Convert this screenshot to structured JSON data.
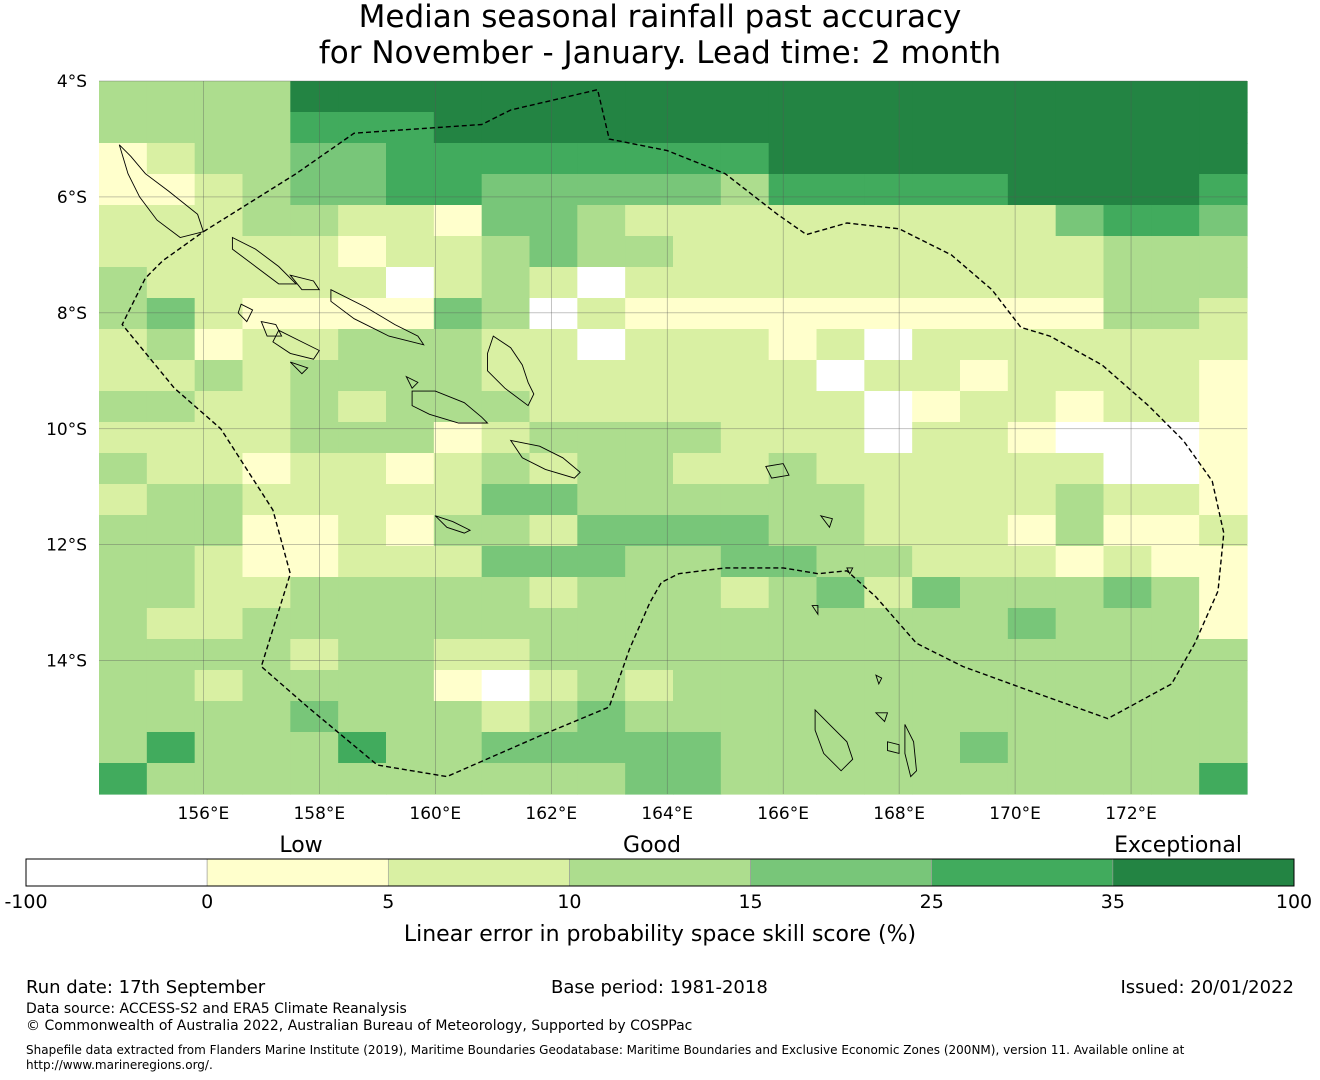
{
  "title": {
    "line1": "Median seasonal rainfall past accuracy",
    "line2": "for November - January. Lead time: 2 month"
  },
  "map": {
    "lat_range": [
      -16.3,
      -4.0
    ],
    "lon_range": [
      154.2,
      174.0
    ],
    "lat_ticks": [
      {
        "value": -4,
        "label": "4°S"
      },
      {
        "value": -6,
        "label": "6°S"
      },
      {
        "value": -8,
        "label": "8°S"
      },
      {
        "value": -10,
        "label": "10°S"
      },
      {
        "value": -12,
        "label": "12°S"
      },
      {
        "value": -14,
        "label": "14°S"
      }
    ],
    "lon_ticks": [
      {
        "value": 156,
        "label": "156°E"
      },
      {
        "value": 158,
        "label": "158°E"
      },
      {
        "value": 160,
        "label": "160°E"
      },
      {
        "value": 162,
        "label": "162°E"
      },
      {
        "value": 164,
        "label": "164°E"
      },
      {
        "value": 166,
        "label": "166°E"
      },
      {
        "value": 168,
        "label": "168°E"
      },
      {
        "value": 170,
        "label": "170°E"
      },
      {
        "value": 172,
        "label": "172°E"
      }
    ],
    "grid": {
      "cols": 24,
      "rows": 23,
      "row_codes": [
        "333366666666666666666666",
        "333355566666666666666666",
        "123344555555556666666666",
        "112344554444435555566665",
        "222332214432222222224554",
        "222221223433222222222333",
        "322222023202222222222333",
        "342111143021111111111332",
        "231223332202221202222222",
        "223233332222222022122221",
        "332232333222222201221221",
        "222233312333322202210001",
        "322122123233223222222001",
        "233222224433333322223221",
        "333112133244443322213112",
        "332112224443344332221211",
        "332233333233323424333431",
        "322333333333333333343331",
        "333323322333333333333333",
        "332333310232333333333333",
        "333343332343333333333333",
        "353335334444433333433333",
        "533333333334433333333335"
      ]
    },
    "categories": [
      {
        "code": 0,
        "color": "#ffffff"
      },
      {
        "code": 1,
        "color": "#ffffcc"
      },
      {
        "code": 2,
        "color": "#d9f0a3"
      },
      {
        "code": 3,
        "color": "#addd8e"
      },
      {
        "code": 4,
        "color": "#78c679"
      },
      {
        "code": 5,
        "color": "#41ab5d"
      },
      {
        "code": 6,
        "color": "#238443"
      }
    ],
    "eez_boundary": [
      [
        156.0,
        -6.6
      ],
      [
        157.6,
        -5.6
      ],
      [
        158.6,
        -4.9
      ],
      [
        160.8,
        -4.75
      ],
      [
        161.3,
        -4.5
      ],
      [
        162.8,
        -4.15
      ],
      [
        163.0,
        -5.0
      ],
      [
        164.0,
        -5.2
      ],
      [
        165.0,
        -5.6
      ],
      [
        165.9,
        -6.3
      ],
      [
        166.4,
        -6.65
      ],
      [
        167.1,
        -6.45
      ],
      [
        168.0,
        -6.55
      ],
      [
        168.9,
        -7.0
      ],
      [
        169.6,
        -7.6
      ],
      [
        170.1,
        -8.25
      ],
      [
        170.6,
        -8.4
      ],
      [
        171.5,
        -8.9
      ],
      [
        172.3,
        -9.6
      ],
      [
        172.9,
        -10.2
      ],
      [
        173.4,
        -10.9
      ],
      [
        173.6,
        -11.8
      ],
      [
        173.5,
        -12.8
      ],
      [
        173.1,
        -13.7
      ],
      [
        172.7,
        -14.4
      ],
      [
        171.6,
        -15.0
      ],
      [
        170.2,
        -14.5
      ],
      [
        169.1,
        -14.1
      ],
      [
        168.3,
        -13.7
      ],
      [
        167.6,
        -12.9
      ],
      [
        167.1,
        -12.45
      ],
      [
        166.6,
        -12.5
      ],
      [
        166.0,
        -12.4
      ],
      [
        165.0,
        -12.4
      ],
      [
        164.2,
        -12.5
      ],
      [
        163.9,
        -12.65
      ],
      [
        163.7,
        -13.0
      ],
      [
        163.35,
        -13.8
      ],
      [
        163.0,
        -14.8
      ],
      [
        161.8,
        -15.3
      ],
      [
        160.2,
        -16.0
      ],
      [
        159.0,
        -15.8
      ],
      [
        157.8,
        -14.8
      ],
      [
        157.0,
        -14.1
      ],
      [
        157.5,
        -12.5
      ],
      [
        157.2,
        -11.4
      ],
      [
        156.3,
        -10.0
      ],
      [
        155.5,
        -9.3
      ],
      [
        154.6,
        -8.2
      ],
      [
        155.0,
        -7.4
      ],
      [
        155.3,
        -7.1
      ],
      [
        156.0,
        -6.6
      ]
    ],
    "coastlines": [
      [
        [
          154.55,
          -5.1
        ],
        [
          154.75,
          -5.3
        ],
        [
          155.0,
          -5.6
        ],
        [
          155.4,
          -5.9
        ],
        [
          155.9,
          -6.3
        ],
        [
          156.0,
          -6.6
        ],
        [
          155.6,
          -6.7
        ],
        [
          155.2,
          -6.4
        ],
        [
          154.9,
          -6.0
        ],
        [
          154.7,
          -5.6
        ],
        [
          154.55,
          -5.1
        ]
      ],
      [
        [
          156.5,
          -6.7
        ],
        [
          156.9,
          -6.9
        ],
        [
          157.3,
          -7.2
        ],
        [
          157.6,
          -7.5
        ],
        [
          157.3,
          -7.5
        ],
        [
          156.9,
          -7.2
        ],
        [
          156.5,
          -6.9
        ],
        [
          156.5,
          -6.7
        ]
      ],
      [
        [
          157.5,
          -7.35
        ],
        [
          157.9,
          -7.45
        ],
        [
          158.0,
          -7.6
        ],
        [
          157.7,
          -7.6
        ],
        [
          157.5,
          -7.35
        ]
      ],
      [
        [
          158.2,
          -7.6
        ],
        [
          158.8,
          -7.9
        ],
        [
          159.3,
          -8.2
        ],
        [
          159.7,
          -8.4
        ],
        [
          159.8,
          -8.55
        ],
        [
          159.2,
          -8.4
        ],
        [
          158.6,
          -8.1
        ],
        [
          158.2,
          -7.8
        ],
        [
          158.2,
          -7.6
        ]
      ],
      [
        [
          156.65,
          -7.85
        ],
        [
          156.85,
          -7.95
        ],
        [
          156.75,
          -8.15
        ],
        [
          156.6,
          -8.0
        ],
        [
          156.65,
          -7.85
        ]
      ],
      [
        [
          157.0,
          -8.15
        ],
        [
          157.25,
          -8.2
        ],
        [
          157.35,
          -8.4
        ],
        [
          157.1,
          -8.4
        ],
        [
          157.0,
          -8.15
        ]
      ],
      [
        [
          157.3,
          -8.3
        ],
        [
          157.7,
          -8.5
        ],
        [
          158.0,
          -8.65
        ],
        [
          157.9,
          -8.8
        ],
        [
          157.5,
          -8.7
        ],
        [
          157.2,
          -8.5
        ],
        [
          157.3,
          -8.3
        ]
      ],
      [
        [
          157.5,
          -8.85
        ],
        [
          157.8,
          -8.95
        ],
        [
          157.7,
          -9.05
        ],
        [
          157.5,
          -8.85
        ]
      ],
      [
        [
          159.5,
          -9.1
        ],
        [
          159.7,
          -9.2
        ],
        [
          159.6,
          -9.3
        ],
        [
          159.5,
          -9.1
        ]
      ],
      [
        [
          159.6,
          -9.35
        ],
        [
          160.0,
          -9.35
        ],
        [
          160.5,
          -9.55
        ],
        [
          160.8,
          -9.8
        ],
        [
          160.9,
          -9.9
        ],
        [
          160.4,
          -9.9
        ],
        [
          159.9,
          -9.75
        ],
        [
          159.6,
          -9.6
        ],
        [
          159.6,
          -9.35
        ]
      ],
      [
        [
          161.0,
          -8.4
        ],
        [
          161.3,
          -8.6
        ],
        [
          161.5,
          -8.9
        ],
        [
          161.6,
          -9.2
        ],
        [
          161.7,
          -9.4
        ],
        [
          161.6,
          -9.6
        ],
        [
          161.2,
          -9.3
        ],
        [
          160.9,
          -9.0
        ],
        [
          160.9,
          -8.7
        ],
        [
          161.0,
          -8.4
        ]
      ],
      [
        [
          161.3,
          -10.2
        ],
        [
          161.8,
          -10.3
        ],
        [
          162.2,
          -10.5
        ],
        [
          162.5,
          -10.75
        ],
        [
          162.4,
          -10.85
        ],
        [
          161.9,
          -10.7
        ],
        [
          161.5,
          -10.5
        ],
        [
          161.3,
          -10.2
        ]
      ],
      [
        [
          160.0,
          -11.5
        ],
        [
          160.3,
          -11.6
        ],
        [
          160.6,
          -11.75
        ],
        [
          160.5,
          -11.8
        ],
        [
          160.2,
          -11.7
        ],
        [
          160.0,
          -11.5
        ]
      ],
      [
        [
          165.7,
          -10.65
        ],
        [
          166.0,
          -10.6
        ],
        [
          166.1,
          -10.8
        ],
        [
          165.8,
          -10.85
        ],
        [
          165.7,
          -10.65
        ]
      ],
      [
        [
          166.65,
          -11.5
        ],
        [
          166.85,
          -11.55
        ],
        [
          166.8,
          -11.7
        ],
        [
          166.65,
          -11.5
        ]
      ],
      [
        [
          167.1,
          -12.4
        ],
        [
          167.2,
          -12.4
        ],
        [
          167.15,
          -12.5
        ],
        [
          167.1,
          -12.4
        ]
      ],
      [
        [
          166.5,
          -13.05
        ],
        [
          166.6,
          -13.05
        ],
        [
          166.6,
          -13.2
        ],
        [
          166.5,
          -13.05
        ]
      ],
      [
        [
          167.6,
          -14.25
        ],
        [
          167.7,
          -14.3
        ],
        [
          167.65,
          -14.4
        ],
        [
          167.6,
          -14.25
        ]
      ],
      [
        [
          167.6,
          -14.9
        ],
        [
          167.8,
          -14.9
        ],
        [
          167.75,
          -15.05
        ],
        [
          167.6,
          -14.9
        ]
      ],
      [
        [
          166.55,
          -14.85
        ],
        [
          166.8,
          -15.1
        ],
        [
          167.1,
          -15.4
        ],
        [
          167.2,
          -15.7
        ],
        [
          167.0,
          -15.9
        ],
        [
          166.7,
          -15.6
        ],
        [
          166.55,
          -15.2
        ],
        [
          166.55,
          -14.85
        ]
      ],
      [
        [
          167.8,
          -15.4
        ],
        [
          168.0,
          -15.45
        ],
        [
          168.0,
          -15.6
        ],
        [
          167.8,
          -15.55
        ],
        [
          167.8,
          -15.4
        ]
      ],
      [
        [
          168.1,
          -15.1
        ],
        [
          168.25,
          -15.4
        ],
        [
          168.3,
          -15.9
        ],
        [
          168.2,
          -16.0
        ],
        [
          168.1,
          -15.6
        ],
        [
          168.1,
          -15.1
        ]
      ]
    ]
  },
  "colorbar": {
    "category_labels": {
      "low": "Low",
      "good": "Good",
      "exceptional": "Exceptional"
    },
    "boundaries": [
      "-100",
      "0",
      "5",
      "10",
      "15",
      "25",
      "35",
      "100"
    ],
    "colors": [
      "#ffffff",
      "#ffffcc",
      "#d9f0a3",
      "#addd8e",
      "#78c679",
      "#41ab5d",
      "#238443"
    ],
    "label": "Linear error in probability space skill score (%)"
  },
  "footer": {
    "run_date": "Run date: 17th September",
    "base_period": "Base period: 1981-2018",
    "issued": "Issued: 20/01/2022",
    "data_source": "Data source: ACCESS-S2 and ERA5 Climate Reanalysis",
    "copyright": "© Commonwealth of Australia 2022, Australian Bureau of Meteorology, Supported by COSPPac",
    "shapefile_line1": "Shapefile data extracted from Flanders Marine Institute (2019), Maritime Boundaries Geodatabase: Maritime Boundaries and Exclusive Economic Zones (200NM), version 11. Available online at",
    "shapefile_line2": "http://www.marineregions.org/."
  }
}
